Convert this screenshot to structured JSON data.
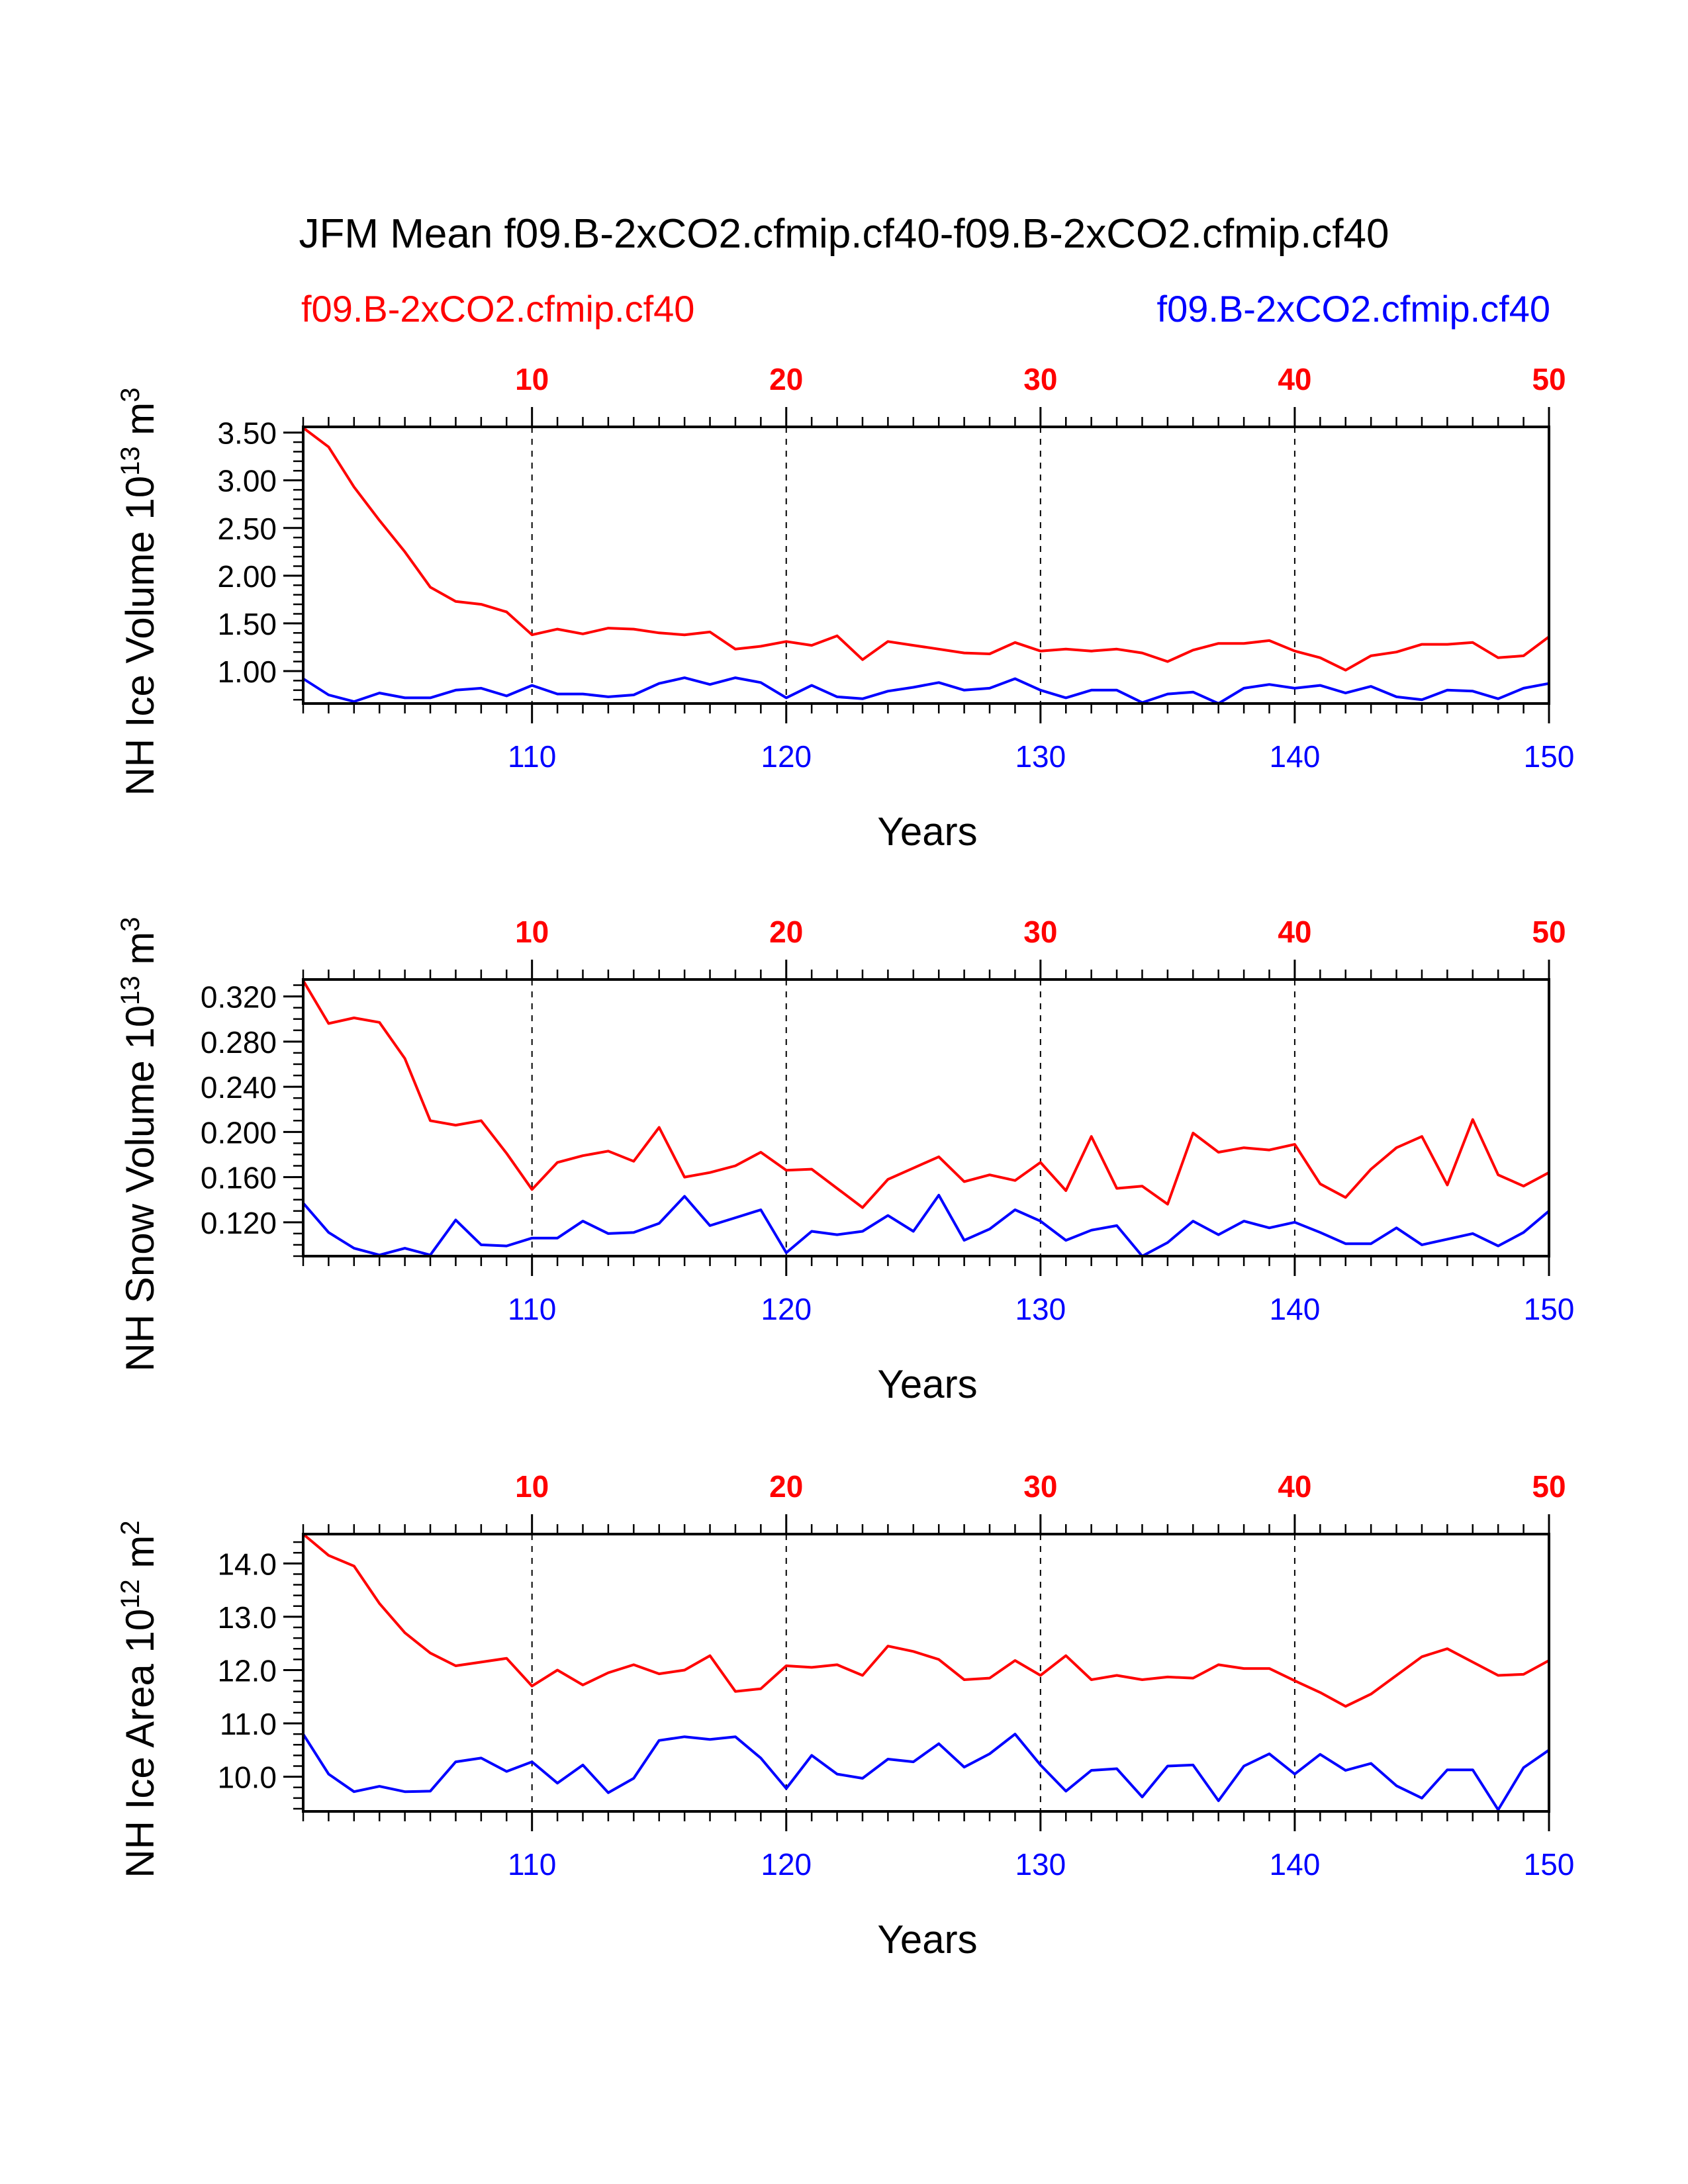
{
  "page": {
    "title": "JFM Mean f09.B-2xCO2.cfmip.cf40-f09.B-2xCO2.cfmip.cf40",
    "legend_left": "f09.B-2xCO2.cfmip.cf40",
    "legend_right": "f09.B-2xCO2.cfmip.cf40"
  },
  "colors": {
    "red": "#ff0000",
    "blue": "#0000ff",
    "axis": "#000000"
  },
  "chart_data": [
    {
      "type": "line",
      "ylabel": "NH Ice Volume 10",
      "ylabel_sup": "13",
      "ylabel_unit": " m",
      "ylabel_unit_sup": "3",
      "xlabel": "Years",
      "xlim": [
        101,
        150
      ],
      "ylim": [
        0.66,
        3.56
      ],
      "yticks": [
        1.0,
        1.5,
        2.0,
        2.5,
        3.0,
        3.5
      ],
      "ytick_labels": [
        "1.00",
        "1.50",
        "2.00",
        "2.50",
        "3.00",
        "3.50"
      ],
      "yminor_step": 0.1,
      "xticks_bottom": [
        110,
        120,
        130,
        140,
        150
      ],
      "xticks_top": [
        10,
        20,
        30,
        40,
        50
      ],
      "x": [
        101,
        102,
        103,
        104,
        105,
        106,
        107,
        108,
        109,
        110,
        111,
        112,
        113,
        114,
        115,
        116,
        117,
        118,
        119,
        120,
        121,
        122,
        123,
        124,
        125,
        126,
        127,
        128,
        129,
        130,
        131,
        132,
        133,
        134,
        135,
        136,
        137,
        138,
        139,
        140,
        141,
        142,
        143,
        144,
        145,
        146,
        147,
        148,
        149,
        150
      ],
      "series": [
        {
          "color": "red",
          "values": [
            3.55,
            3.35,
            2.93,
            2.58,
            2.25,
            1.88,
            1.73,
            1.7,
            1.62,
            1.38,
            1.44,
            1.39,
            1.45,
            1.44,
            1.4,
            1.38,
            1.41,
            1.23,
            1.26,
            1.31,
            1.27,
            1.37,
            1.12,
            1.31,
            1.27,
            1.23,
            1.19,
            1.18,
            1.3,
            1.21,
            1.23,
            1.21,
            1.23,
            1.19,
            1.1,
            1.22,
            1.29,
            1.29,
            1.32,
            1.21,
            1.14,
            1.01,
            1.16,
            1.2,
            1.28,
            1.28,
            1.3,
            1.14,
            1.16,
            1.36
          ]
        },
        {
          "color": "blue",
          "values": [
            0.92,
            0.75,
            0.68,
            0.77,
            0.72,
            0.72,
            0.8,
            0.82,
            0.74,
            0.85,
            0.76,
            0.76,
            0.73,
            0.75,
            0.87,
            0.93,
            0.86,
            0.93,
            0.88,
            0.72,
            0.85,
            0.73,
            0.71,
            0.79,
            0.83,
            0.88,
            0.8,
            0.82,
            0.92,
            0.8,
            0.72,
            0.8,
            0.8,
            0.67,
            0.76,
            0.78,
            0.66,
            0.82,
            0.86,
            0.82,
            0.85,
            0.77,
            0.84,
            0.73,
            0.7,
            0.8,
            0.79,
            0.71,
            0.82,
            0.87
          ]
        }
      ]
    },
    {
      "type": "line",
      "ylabel": "NH Snow Volume 10",
      "ylabel_sup": "13",
      "ylabel_unit": " m",
      "ylabel_unit_sup": "3",
      "xlabel": "Years",
      "xlim": [
        101,
        150
      ],
      "ylim": [
        0.09,
        0.335
      ],
      "yticks": [
        0.12,
        0.16,
        0.2,
        0.24,
        0.28,
        0.32
      ],
      "ytick_labels": [
        "0.120",
        "0.160",
        "0.200",
        "0.240",
        "0.280",
        "0.320"
      ],
      "yminor_step": 0.01,
      "xticks_bottom": [
        110,
        120,
        130,
        140,
        150
      ],
      "xticks_top": [
        10,
        20,
        30,
        40,
        50
      ],
      "x": [
        101,
        102,
        103,
        104,
        105,
        106,
        107,
        108,
        109,
        110,
        111,
        112,
        113,
        114,
        115,
        116,
        117,
        118,
        119,
        120,
        121,
        122,
        123,
        124,
        125,
        126,
        127,
        128,
        129,
        130,
        131,
        132,
        133,
        134,
        135,
        136,
        137,
        138,
        139,
        140,
        141,
        142,
        143,
        144,
        145,
        146,
        147,
        148,
        149,
        150
      ],
      "series": [
        {
          "color": "red",
          "values": [
            0.334,
            0.296,
            0.301,
            0.297,
            0.265,
            0.21,
            0.206,
            0.21,
            0.181,
            0.149,
            0.173,
            0.179,
            0.183,
            0.174,
            0.204,
            0.16,
            0.164,
            0.17,
            0.182,
            0.166,
            0.167,
            0.15,
            0.133,
            0.158,
            0.168,
            0.178,
            0.156,
            0.162,
            0.157,
            0.173,
            0.148,
            0.196,
            0.15,
            0.152,
            0.136,
            0.199,
            0.182,
            0.186,
            0.184,
            0.189,
            0.154,
            0.142,
            0.167,
            0.186,
            0.196,
            0.153,
            0.211,
            0.162,
            0.152,
            0.164
          ]
        },
        {
          "color": "blue",
          "values": [
            0.137,
            0.111,
            0.097,
            0.091,
            0.097,
            0.091,
            0.122,
            0.1,
            0.099,
            0.106,
            0.106,
            0.121,
            0.11,
            0.111,
            0.119,
            0.143,
            0.117,
            0.124,
            0.131,
            0.093,
            0.112,
            0.109,
            0.112,
            0.126,
            0.112,
            0.144,
            0.104,
            0.114,
            0.131,
            0.121,
            0.104,
            0.113,
            0.117,
            0.09,
            0.102,
            0.121,
            0.109,
            0.121,
            0.115,
            0.12,
            0.111,
            0.101,
            0.101,
            0.115,
            0.1,
            0.105,
            0.11,
            0.099,
            0.111,
            0.13
          ]
        }
      ]
    },
    {
      "type": "line",
      "ylabel": "NH Ice Area 10",
      "ylabel_sup": "12",
      "ylabel_unit": " m",
      "ylabel_unit_sup": "2",
      "xlabel": "Years",
      "xlim": [
        101,
        150
      ],
      "ylim": [
        9.35,
        14.55
      ],
      "yticks": [
        10.0,
        11.0,
        12.0,
        13.0,
        14.0
      ],
      "ytick_labels": [
        "10.0",
        "11.0",
        "12.0",
        "13.0",
        "14.0"
      ],
      "yminor_step": 0.2,
      "xticks_bottom": [
        110,
        120,
        130,
        140,
        150
      ],
      "xticks_top": [
        10,
        20,
        30,
        40,
        50
      ],
      "x": [
        101,
        102,
        103,
        104,
        105,
        106,
        107,
        108,
        109,
        110,
        111,
        112,
        113,
        114,
        115,
        116,
        117,
        118,
        119,
        120,
        121,
        122,
        123,
        124,
        125,
        126,
        127,
        128,
        129,
        130,
        131,
        132,
        133,
        134,
        135,
        136,
        137,
        138,
        139,
        140,
        141,
        142,
        143,
        144,
        145,
        146,
        147,
        148,
        149,
        150
      ],
      "series": [
        {
          "color": "red",
          "values": [
            14.55,
            14.15,
            13.95,
            13.25,
            12.7,
            12.32,
            12.08,
            12.15,
            12.22,
            11.7,
            12.0,
            11.72,
            11.95,
            12.1,
            11.93,
            12.0,
            12.27,
            11.6,
            11.65,
            12.08,
            12.05,
            12.1,
            11.9,
            12.45,
            12.35,
            12.2,
            11.82,
            11.85,
            12.18,
            11.9,
            12.27,
            11.82,
            11.9,
            11.82,
            11.87,
            11.85,
            12.1,
            12.03,
            12.03,
            11.8,
            11.58,
            11.32,
            11.55,
            11.9,
            12.25,
            12.4,
            12.15,
            11.9,
            11.92,
            12.18
          ]
        },
        {
          "color": "blue",
          "values": [
            10.8,
            10.05,
            9.72,
            9.82,
            9.72,
            9.73,
            10.28,
            10.35,
            10.1,
            10.28,
            9.88,
            10.22,
            9.7,
            9.97,
            10.68,
            10.75,
            10.7,
            10.75,
            10.35,
            9.78,
            10.4,
            10.05,
            9.97,
            10.33,
            10.28,
            10.62,
            10.18,
            10.43,
            10.8,
            10.22,
            9.73,
            10.12,
            10.15,
            9.62,
            10.2,
            10.22,
            9.55,
            10.2,
            10.43,
            10.05,
            10.42,
            10.12,
            10.25,
            9.83,
            9.6,
            10.13,
            10.13,
            9.38,
            10.17,
            10.5
          ]
        }
      ]
    }
  ]
}
